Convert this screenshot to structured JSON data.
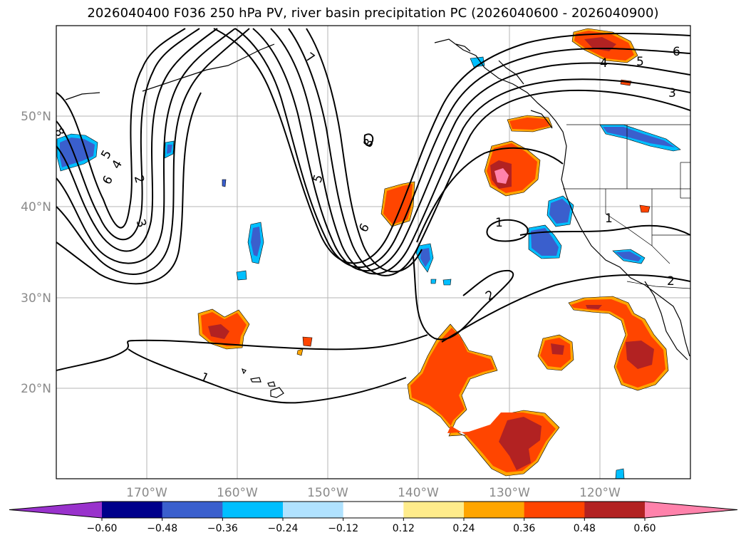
{
  "title": "2026040400 F036 250 hPa PV, river basin precipitation PC (2026040600 - 2026040900)",
  "map": {
    "projection": "PlateCarree",
    "lon_range": [
      -180,
      -110
    ],
    "lat_range": [
      10,
      60
    ],
    "gridlines": true,
    "lat_ticks": [
      {
        "label": "20°N"
      },
      {
        "label": "30°N"
      },
      {
        "label": "40°N"
      },
      {
        "label": "50°N"
      }
    ],
    "lon_ticks": [
      {
        "label": "170°W"
      },
      {
        "label": "160°W"
      },
      {
        "label": "150°W"
      },
      {
        "label": "140°W"
      },
      {
        "label": "130°W"
      },
      {
        "label": "120°W"
      }
    ]
  },
  "pv_contours": {
    "color": "#000000",
    "labels": [
      "1",
      "1",
      "1",
      "2",
      "2",
      "2",
      "3",
      "3",
      "3",
      "4",
      "4",
      "5",
      "5",
      "5",
      "6",
      "6",
      "6",
      "7",
      "8",
      "8"
    ]
  },
  "colorbar": {
    "orientation": "horizontal",
    "extend": "both",
    "colors": [
      "#9932cc",
      "#00008b",
      "#3a5fcd",
      "#00bfff",
      "#b0e2ff",
      "#ffffff",
      "#ffec8b",
      "#ffa500",
      "#ff4500",
      "#b22222",
      "#ff82ab"
    ],
    "tick_labels": [
      "−0.60",
      "−0.48",
      "−0.36",
      "−0.24",
      "−0.12",
      "0.12",
      "0.24",
      "0.36",
      "0.48",
      "0.60"
    ]
  }
}
